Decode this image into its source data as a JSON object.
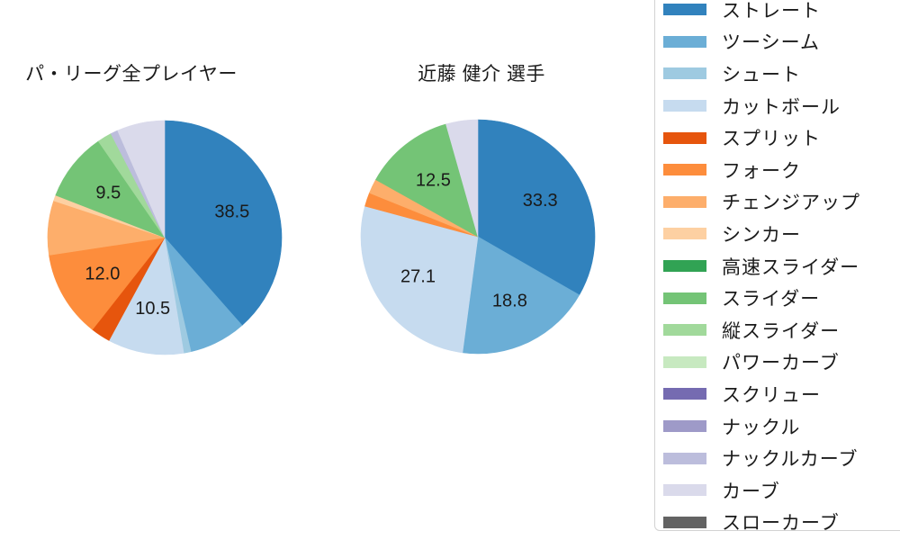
{
  "figure": {
    "background": "#ffffff",
    "text_color": "#1a1a1a"
  },
  "chart_data": [
    {
      "type": "pie",
      "title": "パ・リーグ全プレイヤー",
      "start_angle": "top",
      "direction": "clockwise",
      "label_distance": 0.615,
      "labels": [
        "ストレート",
        "ツーシーム",
        "シュート",
        "カットボール",
        "スプリット",
        "フォーク",
        "チェンジアップ",
        "シンカー",
        "スライダー",
        "縦スライダー",
        "ナックルカーブ",
        "カーブ"
      ],
      "values": [
        38.5,
        7.9,
        1.0,
        10.5,
        2.7,
        12.0,
        7.5,
        0.8,
        9.5,
        2.0,
        1.0,
        6.6
      ],
      "colors": [
        "#3182bd",
        "#6baed6",
        "#9ecae1",
        "#c6dbef",
        "#e6550d",
        "#fd8d3c",
        "#fdae6b",
        "#fdd0a2",
        "#74c476",
        "#a1d99b",
        "#bcbddc",
        "#dadaeb"
      ],
      "pct_labels": [
        "38.5",
        null,
        null,
        "10.5",
        null,
        "12.0",
        null,
        null,
        "9.5",
        null,
        null,
        null
      ]
    },
    {
      "type": "pie",
      "title": "近藤 健介 選手",
      "start_angle": "top",
      "direction": "clockwise",
      "label_distance": 0.615,
      "labels": [
        "ストレート",
        "ツーシーム",
        "カットボール",
        "フォーク",
        "チェンジアップ",
        "スライダー",
        "カーブ"
      ],
      "values": [
        33.3,
        18.8,
        27.1,
        1.9,
        2.0,
        12.5,
        4.4
      ],
      "colors": [
        "#3182bd",
        "#6baed6",
        "#c6dbef",
        "#fd8d3c",
        "#fdae6b",
        "#74c476",
        "#dadaeb"
      ],
      "pct_labels": [
        "33.3",
        "18.8",
        "27.1",
        null,
        null,
        "12.5",
        null
      ]
    }
  ],
  "legend": {
    "position": "right",
    "items": [
      {
        "label": "ストレート",
        "color": "#3182bd"
      },
      {
        "label": "ツーシーム",
        "color": "#6baed6"
      },
      {
        "label": "シュート",
        "color": "#9ecae1"
      },
      {
        "label": "カットボール",
        "color": "#c6dbef"
      },
      {
        "label": "スプリット",
        "color": "#e6550d"
      },
      {
        "label": "フォーク",
        "color": "#fd8d3c"
      },
      {
        "label": "チェンジアップ",
        "color": "#fdae6b"
      },
      {
        "label": "シンカー",
        "color": "#fdd0a2"
      },
      {
        "label": "高速スライダー",
        "color": "#31a354"
      },
      {
        "label": "スライダー",
        "color": "#74c476"
      },
      {
        "label": "縦スライダー",
        "color": "#a1d99b"
      },
      {
        "label": "パワーカーブ",
        "color": "#c7e9c0"
      },
      {
        "label": "スクリュー",
        "color": "#756bb1"
      },
      {
        "label": "ナックル",
        "color": "#9e9ac8"
      },
      {
        "label": "ナックルカーブ",
        "color": "#bcbddc"
      },
      {
        "label": "カーブ",
        "color": "#dadaeb"
      },
      {
        "label": "スローカーブ",
        "color": "#636363"
      }
    ]
  }
}
